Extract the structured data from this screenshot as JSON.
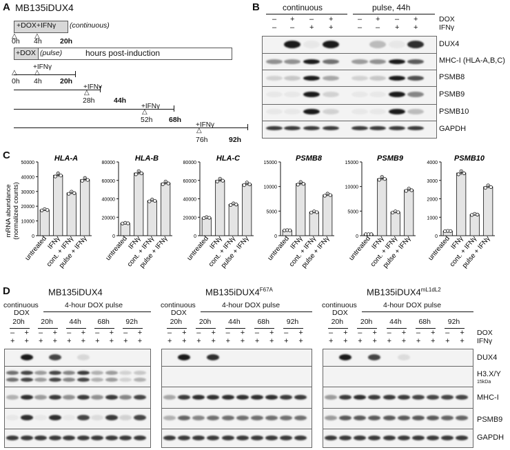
{
  "panelA": {
    "letter": "A",
    "title": "MB135iDUX4",
    "cont_box": "+DOX+IFNγ",
    "cont_note": "(continuous)",
    "pulse_box": "+DOX",
    "pulse_note": "(pulse)",
    "hours_text": "hours post-induction",
    "rows": [
      {
        "ifn": "",
        "t0": "0h",
        "t1": "4h",
        "end": "20h"
      },
      {
        "ifn": "+IFNγ",
        "t0": "0h",
        "t1": "4h",
        "end": "20h"
      },
      {
        "ifn": "+IFNγ",
        "t0": "28h",
        "end": "44h"
      },
      {
        "ifn": "+IFNγ",
        "t0": "52h",
        "end": "68h"
      },
      {
        "ifn": "+IFNγ",
        "t0": "76h",
        "end": "92h"
      }
    ]
  },
  "panelB": {
    "letter": "B",
    "group1": "continuous",
    "group2": "pulse, 44h",
    "row_labels": [
      "DOX",
      "IFNγ"
    ],
    "dox": [
      "–",
      "+",
      "–",
      "+",
      "–",
      "+",
      "–",
      "+"
    ],
    "ifn": [
      "–",
      "–",
      "+",
      "+",
      "–",
      "–",
      "+",
      "+"
    ],
    "blots": [
      "DUX4",
      "MHC-I (HLA-A,B,C)",
      "PSMB8",
      "PSMB9",
      "PSMB10",
      "GAPDH"
    ]
  },
  "panelC": {
    "letter": "C",
    "ylabel_line1": "mRNA abundance",
    "ylabel_line2": "(normalized counts)",
    "categories": [
      "untreated",
      "IFNγ",
      "cont. + IFNγ",
      "pulse + IFNγ"
    ]
  },
  "chart_data": [
    {
      "type": "bar",
      "title": "HLA-A",
      "categories": [
        "untreated",
        "IFNγ",
        "cont. + IFNγ",
        "pulse + IFNγ"
      ],
      "values": [
        17500,
        41000,
        29000,
        38000
      ],
      "ylim": [
        0,
        50000
      ],
      "yticks": [
        0,
        10000,
        20000,
        30000,
        40000,
        50000
      ]
    },
    {
      "type": "bar",
      "title": "HLA-B",
      "categories": [
        "untreated",
        "IFNγ",
        "cont. + IFNγ",
        "pulse + IFNγ"
      ],
      "values": [
        13500,
        68000,
        38000,
        57000
      ],
      "ylim": [
        0,
        80000
      ],
      "yticks": [
        0,
        20000,
        40000,
        60000,
        80000
      ]
    },
    {
      "type": "bar",
      "title": "HLA-C",
      "categories": [
        "untreated",
        "IFNγ",
        "cont. + IFNγ",
        "pulse + IFNγ"
      ],
      "values": [
        19500,
        60000,
        34000,
        56000
      ],
      "ylim": [
        0,
        80000
      ],
      "yticks": [
        0,
        20000,
        40000,
        60000,
        80000
      ]
    },
    {
      "type": "bar",
      "title": "PSMB8",
      "categories": [
        "untreated",
        "IFNγ",
        "cont. + IFNγ",
        "pulse + IFNγ"
      ],
      "values": [
        1100,
        10600,
        4800,
        8300
      ],
      "ylim": [
        0,
        15000
      ],
      "yticks": [
        0,
        5000,
        10000,
        15000
      ]
    },
    {
      "type": "bar",
      "title": "PSMB9",
      "categories": [
        "untreated",
        "IFNγ",
        "cont. + IFNγ",
        "pulse + IFNγ"
      ],
      "values": [
        300,
        11600,
        4800,
        9300
      ],
      "ylim": [
        0,
        15000
      ],
      "yticks": [
        0,
        5000,
        10000,
        15000
      ]
    },
    {
      "type": "bar",
      "title": "PSMB10",
      "categories": [
        "untreated",
        "IFNγ",
        "cont. + IFNγ",
        "pulse + IFNγ"
      ],
      "values": [
        250,
        3400,
        1150,
        2650
      ],
      "ylim": [
        0,
        4000
      ],
      "yticks": [
        0,
        1000,
        2000,
        3000,
        4000
      ]
    }
  ],
  "panelD": {
    "letter": "D",
    "cont_label": "continuous",
    "dox_label": "DOX",
    "pulse_label": "4-hour DOX pulse",
    "timepoints": [
      "20h",
      "20h",
      "44h",
      "68h",
      "92h"
    ],
    "row_labels": [
      "DOX",
      "IFNγ"
    ],
    "dox": [
      "–",
      "+",
      "–",
      "+",
      "–",
      "+",
      "–",
      "+",
      "–",
      "+"
    ],
    "ifn": [
      "+",
      "+",
      "+",
      "+",
      "+",
      "+",
      "+",
      "+",
      "+",
      "+"
    ],
    "blocks": [
      {
        "title": "MB135iDUX4",
        "sup": ""
      },
      {
        "title": "MB135iDUX4",
        "sup": "F67A"
      },
      {
        "title": "MB135iDUX4",
        "sup": "mL1dL2"
      }
    ],
    "blots": [
      "DUX4",
      "H3.X/Y",
      "MHC-I",
      "PSMB9",
      "GAPDH"
    ],
    "size_marker": "15kDa"
  }
}
